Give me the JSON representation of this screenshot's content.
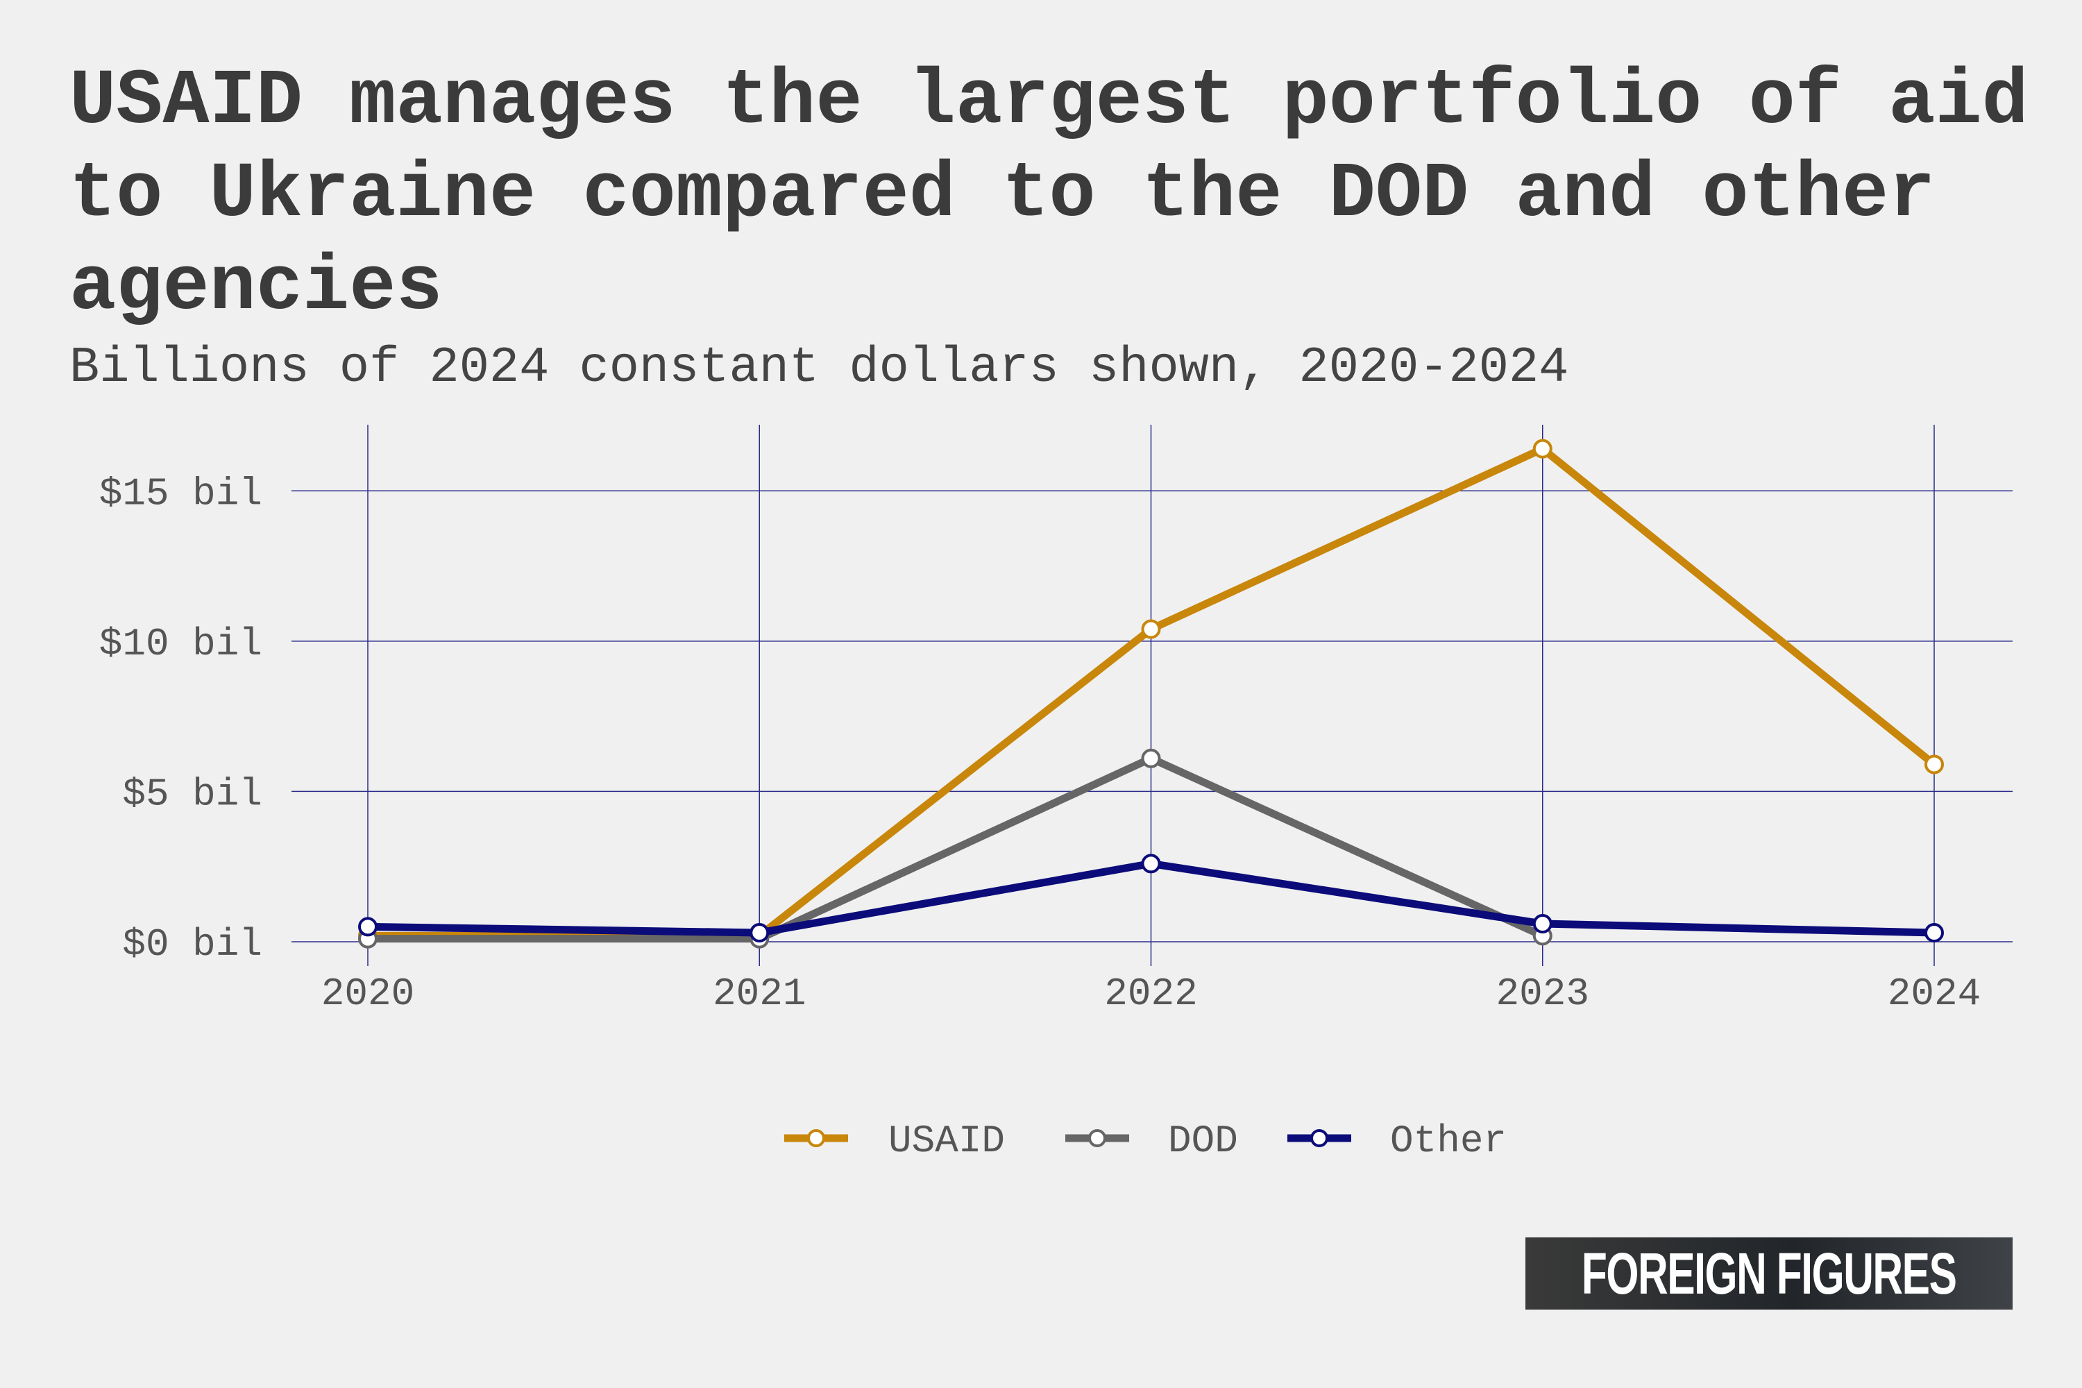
{
  "title": "USAID manages the largest portfolio of aid to Ukraine compared to the DOD and other agencies",
  "subtitle": "Billions of 2024 constant dollars shown, 2020-2024",
  "logo_text": "FOREIGN FIGURES",
  "colors": {
    "background": "#f0f0f0",
    "grid": "#2c2c8c",
    "usaid": "#c8860b",
    "dod": "#666666",
    "other": "#0b0b7a"
  },
  "chart_data": {
    "type": "line",
    "x": [
      2020,
      2021,
      2022,
      2023,
      2024
    ],
    "x_tick_labels": [
      "2020",
      "2021",
      "2022",
      "2023",
      "2024"
    ],
    "y_ticks": [
      0,
      5,
      10,
      15
    ],
    "y_tick_labels": [
      "$0 bil",
      "$5 bil",
      "$10 bil",
      "$15 bil"
    ],
    "ylim": [
      -0.3,
      17.2
    ],
    "grid": true,
    "legend_position": "bottom-center",
    "series": [
      {
        "name": "USAID",
        "color": "#c8860b",
        "values": [
          0.2,
          0.2,
          10.4,
          16.4,
          5.9
        ]
      },
      {
        "name": "DOD",
        "color": "#666666",
        "values": [
          0.1,
          0.1,
          6.1,
          0.2,
          null
        ]
      },
      {
        "name": "Other",
        "color": "#0b0b7a",
        "values": [
          0.5,
          0.3,
          2.6,
          0.6,
          0.3
        ]
      }
    ]
  }
}
